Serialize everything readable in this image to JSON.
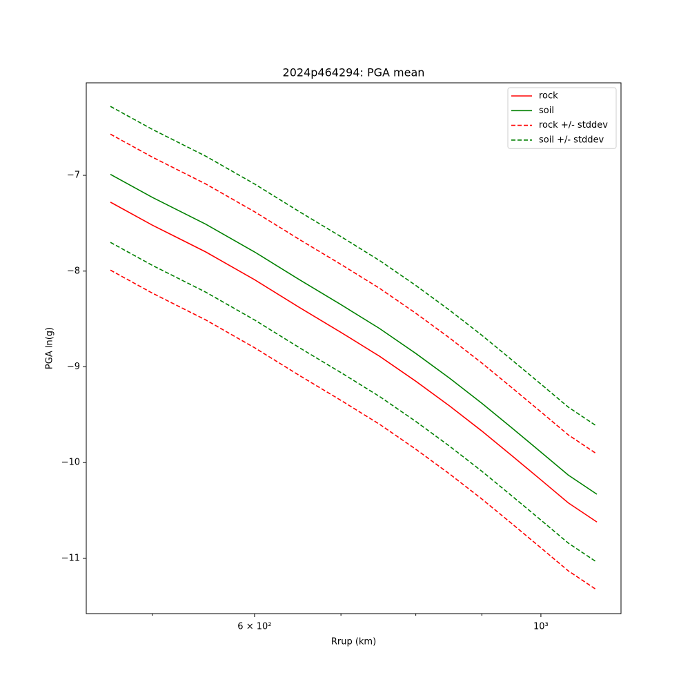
{
  "chart_data": {
    "type": "line",
    "title": "2024p464294: PGA mean",
    "xlabel": "Rrup (km)",
    "ylabel": "PGA ln(g)",
    "xscale": "log",
    "x": [
      464,
      500,
      550,
      600,
      650,
      700,
      750,
      800,
      850,
      900,
      950,
      1000,
      1050,
      1105
    ],
    "series": [
      {
        "name": "rock",
        "color": "#ff0000",
        "dashed": false,
        "values": [
          -7.28,
          -7.52,
          -7.8,
          -8.09,
          -8.38,
          -8.64,
          -8.89,
          -9.15,
          -9.41,
          -9.67,
          -9.93,
          -10.18,
          -10.42,
          -10.62
        ]
      },
      {
        "name": "soil",
        "color": "#008000",
        "dashed": false,
        "values": [
          -6.99,
          -7.23,
          -7.51,
          -7.8,
          -8.09,
          -8.35,
          -8.6,
          -8.86,
          -9.12,
          -9.38,
          -9.64,
          -9.89,
          -10.13,
          -10.33
        ]
      },
      {
        "name": "rock +/- stddev",
        "color": "#ff0000",
        "dashed": true,
        "upper": [
          -6.57,
          -6.81,
          -7.09,
          -7.38,
          -7.67,
          -7.93,
          -8.18,
          -8.44,
          -8.7,
          -8.96,
          -9.22,
          -9.47,
          -9.71,
          -9.91
        ],
        "lower": [
          -7.99,
          -8.23,
          -8.51,
          -8.8,
          -9.09,
          -9.35,
          -9.6,
          -9.86,
          -10.12,
          -10.38,
          -10.64,
          -10.89,
          -11.13,
          -11.33
        ]
      },
      {
        "name": "soil +/- stddev",
        "color": "#008000",
        "dashed": true,
        "upper": [
          -6.28,
          -6.52,
          -6.8,
          -7.09,
          -7.38,
          -7.64,
          -7.89,
          -8.15,
          -8.41,
          -8.67,
          -8.93,
          -9.18,
          -9.42,
          -9.62
        ],
        "lower": [
          -7.7,
          -7.94,
          -8.22,
          -8.51,
          -8.8,
          -9.06,
          -9.31,
          -9.57,
          -9.83,
          -10.09,
          -10.35,
          -10.6,
          -10.84,
          -11.04
        ]
      }
    ],
    "xlim": [
      444.4,
      1153.6
    ],
    "xticks": [
      {
        "value": 600,
        "label": "6 × 10²"
      },
      {
        "value": 1000,
        "label": "10³"
      }
    ],
    "xminorticks": [
      500,
      700,
      800,
      900
    ],
    "ylim": [
      -11.577,
      -6.034
    ],
    "yticks": [
      {
        "value": -11,
        "label": "−11"
      },
      {
        "value": -10,
        "label": "−10"
      },
      {
        "value": -9,
        "label": "−9"
      },
      {
        "value": -8,
        "label": "−8"
      },
      {
        "value": -7,
        "label": "−7"
      }
    ],
    "legend": "upper right"
  }
}
